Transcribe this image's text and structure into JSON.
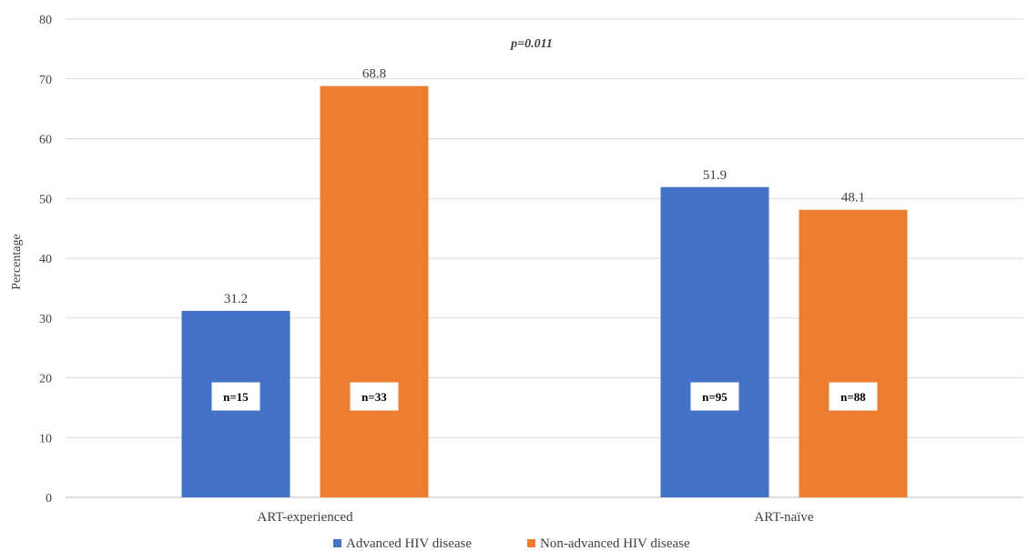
{
  "chart_data": {
    "type": "bar",
    "categories": [
      "ART-experienced",
      "ART-naïve"
    ],
    "series": [
      {
        "name": "Advanced HIV disease",
        "color": "#4472C4",
        "values": [
          31.2,
          51.9
        ],
        "value_labels": [
          "31.2",
          "51.9"
        ],
        "n_labels": [
          "n=15",
          "n=95"
        ]
      },
      {
        "name": "Non-advanced HIV disease",
        "color": "#ED7D31",
        "values": [
          68.8,
          48.1
        ],
        "value_labels": [
          "68.8",
          "48.1"
        ],
        "n_labels": [
          "n=33",
          "n=88"
        ]
      }
    ],
    "ylabel": "Percentage",
    "xlabel": "",
    "ylim": [
      0,
      80
    ],
    "yticks": [
      "0",
      "10",
      "20",
      "30",
      "40",
      "50",
      "60",
      "70",
      "80"
    ],
    "annotation": "p=0.011",
    "grid": true,
    "legend_position": "bottom"
  }
}
